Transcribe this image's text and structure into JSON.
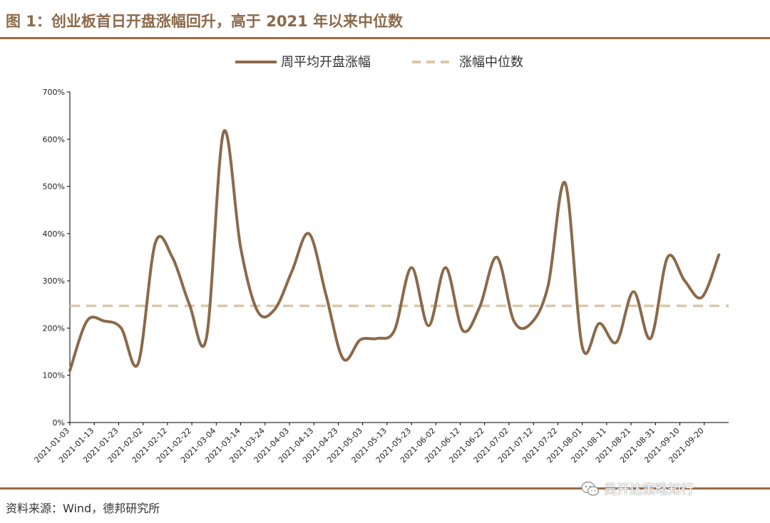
{
  "header": {
    "title": "图 1：创业板首日开盘涨幅回升，高于 2021 年以来中位数"
  },
  "footer": {
    "source": "资料来源：Wind，德邦研究所"
  },
  "watermark": {
    "text": "吴开达策略知行",
    "icon": "wechat-icon"
  },
  "colors": {
    "accent": "#9A6B45",
    "line": "#8B6A4A",
    "median": "#D9C9A8",
    "title": "#8B6A4A"
  },
  "chart_data": {
    "type": "line",
    "title": "",
    "xlabel": "",
    "ylabel": "",
    "ylim": [
      0,
      700
    ],
    "yticks": [
      0,
      100,
      200,
      300,
      400,
      500,
      600,
      700
    ],
    "ytick_labels": [
      "0%",
      "100%",
      "200%",
      "300%",
      "400%",
      "500%",
      "600%",
      "700%"
    ],
    "x_tick_labels": [
      "2021-01-03",
      "2021-01-13",
      "2021-01-23",
      "2021-02-02",
      "2021-02-12",
      "2021-02-22",
      "2021-03-04",
      "2021-03-14",
      "2021-03-24",
      "2021-04-03",
      "2021-04-13",
      "2021-04-23",
      "2021-05-03",
      "2021-05-13",
      "2021-05-23",
      "2021-06-02",
      "2021-06-12",
      "2021-06-22",
      "2021-07-02",
      "2021-07-12",
      "2021-07-22",
      "2021-08-01",
      "2021-08-11",
      "2021-08-21",
      "2021-08-31",
      "2021-09-10",
      "2021-09-20"
    ],
    "x_start": "2021-01-03",
    "x_end": "2021-09-30",
    "grid": false,
    "legend_position": "top-center",
    "series": [
      {
        "name": "周平均开盘涨幅",
        "style": "solid",
        "x": [
          "2021-01-03",
          "2021-01-10",
          "2021-01-17",
          "2021-01-24",
          "2021-01-31",
          "2021-02-07",
          "2021-02-14",
          "2021-02-21",
          "2021-02-28",
          "2021-03-07",
          "2021-03-14",
          "2021-03-21",
          "2021-03-28",
          "2021-04-04",
          "2021-04-11",
          "2021-04-18",
          "2021-04-25",
          "2021-05-02",
          "2021-05-09",
          "2021-05-16",
          "2021-05-23",
          "2021-05-30",
          "2021-06-06",
          "2021-06-13",
          "2021-06-20",
          "2021-06-27",
          "2021-07-04",
          "2021-07-11",
          "2021-07-18",
          "2021-07-25",
          "2021-08-01",
          "2021-08-08",
          "2021-08-15",
          "2021-08-22",
          "2021-08-29",
          "2021-09-05",
          "2021-09-12",
          "2021-09-19",
          "2021-09-26"
        ],
        "y": [
          110,
          215,
          215,
          200,
          125,
          380,
          350,
          250,
          180,
          615,
          370,
          235,
          240,
          320,
          400,
          270,
          135,
          175,
          178,
          195,
          328,
          205,
          328,
          195,
          245,
          350,
          215,
          210,
          290,
          507,
          160,
          210,
          170,
          277,
          178,
          350,
          300,
          265,
          355
        ]
      },
      {
        "name": "涨幅中位数",
        "style": "dashed",
        "y": 247
      }
    ]
  }
}
